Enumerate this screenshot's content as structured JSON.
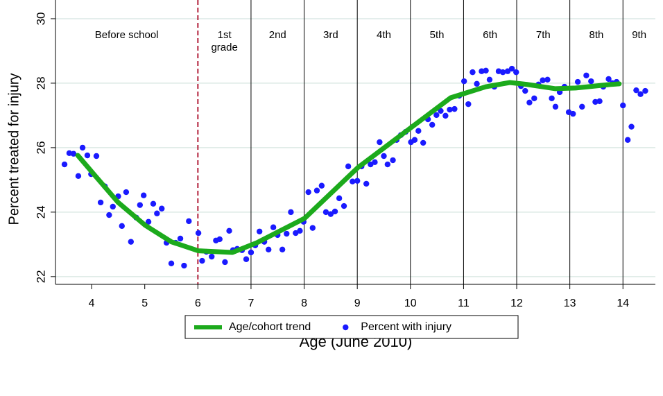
{
  "chart_data": {
    "type": "scatter",
    "xlabel": "Age (June 2010)",
    "ylabel": "Percent treated for injury",
    "xlim": [
      3.32,
      14.61
    ],
    "ylim": [
      21.76,
      30.58
    ],
    "xticks": [
      4,
      5,
      6,
      7,
      8,
      9,
      10,
      11,
      12,
      13,
      14
    ],
    "yticks": [
      22,
      24,
      26,
      28,
      30
    ],
    "grid": true,
    "grid_color": "#dce9e5",
    "legend": "bottom",
    "boundaries": [
      6,
      7,
      8,
      9,
      10,
      11,
      12,
      13,
      14
    ],
    "boundary_color": "#000000",
    "first_boundary_color": "#b2223c",
    "first_boundary_dashed": true,
    "periods": [
      "Before school",
      "1st\ngrade",
      "2nd",
      "3rd",
      "4th",
      "5th",
      "6th",
      "7th",
      "8th",
      "9th"
    ],
    "series": [
      {
        "name": "Age/cohort trend",
        "kind": "line",
        "color": "#1caa1c",
        "x": [
          3.74,
          4.04,
          4.5,
          5.01,
          5.5,
          6.01,
          6.65,
          7.11,
          8.01,
          9.01,
          10.01,
          10.76,
          11.42,
          11.87,
          12.2,
          12.72,
          13.11,
          13.77,
          13.93
        ],
        "values": [
          25.76,
          25.18,
          24.3,
          23.59,
          23.08,
          22.8,
          22.75,
          23.05,
          23.81,
          25.38,
          26.62,
          27.55,
          27.89,
          28.02,
          27.96,
          27.83,
          27.85,
          27.96,
          27.98
        ]
      },
      {
        "name": "Percent with injury",
        "kind": "points",
        "color": "#1a1aff",
        "x": [
          3.49,
          3.58,
          3.66,
          3.75,
          3.83,
          3.92,
          3.99,
          4.09,
          4.17,
          4.25,
          4.33,
          4.4,
          4.5,
          4.57,
          4.65,
          4.74,
          4.84,
          4.91,
          4.98,
          5.07,
          5.16,
          5.23,
          5.32,
          5.41,
          5.5,
          5.58,
          5.67,
          5.74,
          5.83,
          6.01,
          6.08,
          6.16,
          6.26,
          6.34,
          6.41,
          6.51,
          6.59,
          6.66,
          6.74,
          6.83,
          6.91,
          7.0,
          7.08,
          7.16,
          7.25,
          7.33,
          7.42,
          7.5,
          7.59,
          7.67,
          7.75,
          7.84,
          7.92,
          7.99,
          8.08,
          8.16,
          8.24,
          8.33,
          8.41,
          8.5,
          8.58,
          8.66,
          8.75,
          8.83,
          8.91,
          9.0,
          9.08,
          9.17,
          9.25,
          9.33,
          9.42,
          9.5,
          9.57,
          9.67,
          9.74,
          9.82,
          9.91,
          10.01,
          10.08,
          10.15,
          10.24,
          10.33,
          10.41,
          10.49,
          10.57,
          10.66,
          10.74,
          10.83,
          10.92,
          11.01,
          11.09,
          11.17,
          11.25,
          11.34,
          11.42,
          11.49,
          11.58,
          11.66,
          11.74,
          11.83,
          11.91,
          11.99,
          12.08,
          12.16,
          12.24,
          12.33,
          12.41,
          12.49,
          12.58,
          12.66,
          12.73,
          12.81,
          12.9,
          12.98,
          13.06,
          13.15,
          13.23,
          13.31,
          13.4,
          13.48,
          13.56,
          13.63,
          13.73,
          13.8,
          13.88,
          14.0,
          14.09,
          14.16,
          14.25,
          14.33,
          14.42
        ],
        "values": [
          25.48,
          25.83,
          25.81,
          25.12,
          26.0,
          25.76,
          25.18,
          25.74,
          24.3,
          24.8,
          23.91,
          24.17,
          24.49,
          23.57,
          24.62,
          23.08,
          23.83,
          24.22,
          24.52,
          23.7,
          24.26,
          23.96,
          24.11,
          23.05,
          22.41,
          23.05,
          23.18,
          22.34,
          23.72,
          23.35,
          22.49,
          22.77,
          22.62,
          23.12,
          23.16,
          22.45,
          23.42,
          22.82,
          22.86,
          22.82,
          22.54,
          22.75,
          22.97,
          23.4,
          23.08,
          22.84,
          23.53,
          23.29,
          22.84,
          23.33,
          24.0,
          23.35,
          23.42,
          23.7,
          24.62,
          23.51,
          24.67,
          24.82,
          24.0,
          23.94,
          24.02,
          24.43,
          24.19,
          25.42,
          24.95,
          24.97,
          25.42,
          24.88,
          25.48,
          25.55,
          26.17,
          25.74,
          25.48,
          25.61,
          26.24,
          26.39,
          26.49,
          26.17,
          26.24,
          26.52,
          26.15,
          26.88,
          26.71,
          27.01,
          27.14,
          26.99,
          27.18,
          27.2,
          27.61,
          28.06,
          27.35,
          28.34,
          27.98,
          28.37,
          28.39,
          28.11,
          27.89,
          28.37,
          28.34,
          28.37,
          28.45,
          28.34,
          27.91,
          27.76,
          27.4,
          27.53,
          27.96,
          28.09,
          28.11,
          27.53,
          27.27,
          27.72,
          27.89,
          27.1,
          27.05,
          28.04,
          27.27,
          28.24,
          28.06,
          27.42,
          27.44,
          27.89,
          28.13,
          28.0,
          28.04,
          27.31,
          26.24,
          26.65,
          27.78,
          27.66,
          27.76
        ]
      }
    ]
  }
}
